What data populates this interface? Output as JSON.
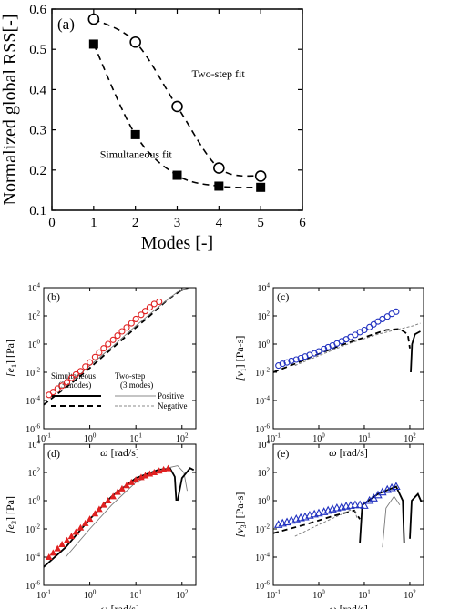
{
  "chart_data": [
    {
      "id": "a",
      "type": "line",
      "panel_label": "(a)",
      "xlabel": "Modes [-]",
      "ylabel": "Normalized global RSS[-]",
      "xlim": [
        0,
        6
      ],
      "ylim": [
        0.1,
        0.6
      ],
      "xticks": [
        "0",
        "1",
        "2",
        "3",
        "4",
        "5",
        "6"
      ],
      "yticks": [
        "0.1",
        "0.2",
        "0.3",
        "0.4",
        "0.5",
        "0.6"
      ],
      "series": [
        {
          "name": "Two-step fit",
          "marker": "open-circle",
          "x": [
            1,
            2,
            3,
            4,
            5
          ],
          "y": [
            0.575,
            0.518,
            0.358,
            0.205,
            0.185
          ]
        },
        {
          "name": "Simultaneous fit",
          "marker": "filled-square",
          "x": [
            1,
            2,
            3,
            4,
            5
          ],
          "y": [
            0.513,
            0.288,
            0.187,
            0.16,
            0.157
          ]
        }
      ]
    },
    {
      "id": "b",
      "type": "scatter",
      "panel_label": "(b)",
      "ylabel_sym": "[e",
      "ylabel_sub": "1",
      "ylabel_unit": "] [Pa]",
      "xlabel_sym": "ω",
      "xlabel_unit": " [rad/s]",
      "scale": "log-log",
      "xlim": [
        0.1,
        200
      ],
      "ylim": [
        1e-06,
        10000
      ],
      "marker_color": "#e02020",
      "marker": "open-circle",
      "data_x": [
        0.13,
        0.16,
        0.2,
        0.25,
        0.32,
        0.4,
        0.5,
        0.63,
        0.8,
        1.0,
        1.3,
        1.6,
        2.0,
        2.5,
        3.2,
        4.0,
        5.0,
        6.3,
        8.0,
        10,
        13,
        16,
        20,
        25,
        32
      ],
      "data_y": [
        0.00025,
        0.0004,
        0.0007,
        0.0011,
        0.002,
        0.004,
        0.007,
        0.012,
        0.025,
        0.05,
        0.12,
        0.25,
        0.5,
        1.0,
        2.0,
        4.0,
        8.0,
        15,
        30,
        60,
        120,
        220,
        400,
        700,
        1000
      ],
      "legend": {
        "col1": "Simultaneous",
        "col1_sub": "(3 modes)",
        "col2": "Two-step",
        "col2_sub": "(3 modes)",
        "row1": "Positive",
        "row2": "Negative"
      }
    },
    {
      "id": "c",
      "type": "scatter",
      "panel_label": "(c)",
      "ylabel_sym": "[v",
      "ylabel_sub": "1",
      "ylabel_unit": "] [Pa-s]",
      "xlabel_sym": "ω",
      "xlabel_unit": " [rad/s]",
      "scale": "log-log",
      "xlim": [
        0.1,
        200
      ],
      "ylim": [
        1e-06,
        10000
      ],
      "marker_color": "#2030c0",
      "marker": "open-circle",
      "data_x": [
        0.13,
        0.16,
        0.2,
        0.25,
        0.32,
        0.4,
        0.5,
        0.63,
        0.8,
        1.0,
        1.3,
        1.6,
        2.0,
        2.5,
        3.2,
        4.0,
        5.0,
        6.3,
        8.0,
        10,
        13,
        16,
        20,
        25,
        32,
        40,
        50
      ],
      "data_y": [
        0.03,
        0.04,
        0.05,
        0.065,
        0.08,
        0.1,
        0.13,
        0.17,
        0.22,
        0.3,
        0.45,
        0.6,
        0.8,
        1.1,
        1.6,
        2.2,
        3.2,
        4.5,
        7,
        10,
        16,
        25,
        40,
        60,
        90,
        140,
        200
      ]
    },
    {
      "id": "d",
      "type": "scatter",
      "panel_label": "(d)",
      "ylabel_sym": "[e",
      "ylabel_sub": "3",
      "ylabel_unit": "] [Pa]",
      "xlabel_sym": "ω",
      "xlabel_unit": " [rad/s]",
      "scale": "log-log",
      "xlim": [
        0.1,
        200
      ],
      "ylim": [
        1e-06,
        10000
      ],
      "marker_color": "#e02020",
      "marker": "filled-triangle",
      "data_x": [
        0.13,
        0.16,
        0.2,
        0.25,
        0.32,
        0.4,
        0.5,
        0.63,
        0.8,
        1.0,
        1.3,
        1.6,
        2.0,
        2.5,
        3.2,
        4.0,
        5.0,
        6.3,
        8.0,
        10,
        13,
        16,
        20,
        25,
        32,
        40,
        50
      ],
      "data_y": [
        0.0001,
        0.0002,
        0.0004,
        0.0008,
        0.0015,
        0.003,
        0.006,
        0.012,
        0.025,
        0.05,
        0.12,
        0.25,
        0.5,
        1.0,
        2.0,
        4.0,
        7,
        12,
        20,
        30,
        45,
        60,
        80,
        100,
        130,
        160,
        190
      ]
    },
    {
      "id": "e",
      "type": "scatter",
      "panel_label": "(e)",
      "ylabel_sym": "[v",
      "ylabel_sub": "3",
      "ylabel_unit": "] [Pa-s]",
      "xlabel_sym": "ω",
      "xlabel_unit": " [rad/s]",
      "scale": "log-log",
      "xlim": [
        0.1,
        200
      ],
      "ylim": [
        1e-06,
        10000
      ],
      "marker_color": "#2030c0",
      "marker": "open-triangle",
      "data_x": [
        0.13,
        0.16,
        0.2,
        0.25,
        0.32,
        0.4,
        0.5,
        0.63,
        0.8,
        1.0,
        1.3,
        1.6,
        2.0,
        2.5,
        3.2,
        4.0,
        5.0,
        6.3,
        8.0,
        10,
        13,
        16,
        20,
        25,
        32,
        40,
        50
      ],
      "data_y": [
        0.02,
        0.025,
        0.03,
        0.04,
        0.05,
        0.06,
        0.07,
        0.09,
        0.11,
        0.13,
        0.16,
        0.2,
        0.25,
        0.3,
        0.35,
        0.4,
        0.45,
        0.5,
        0.5,
        0.45,
        1.0,
        1.5,
        2.5,
        4,
        6,
        8,
        10
      ]
    }
  ],
  "annotations": {
    "two_step_label": "Two-step fit",
    "simultaneous_label": "Simultaneous fit"
  },
  "log_ticks": {
    "x": [
      "10-1",
      "100",
      "101",
      "102"
    ],
    "y": [
      "10-6",
      "10-4",
      "10-2",
      "100",
      "102",
      "104"
    ]
  }
}
